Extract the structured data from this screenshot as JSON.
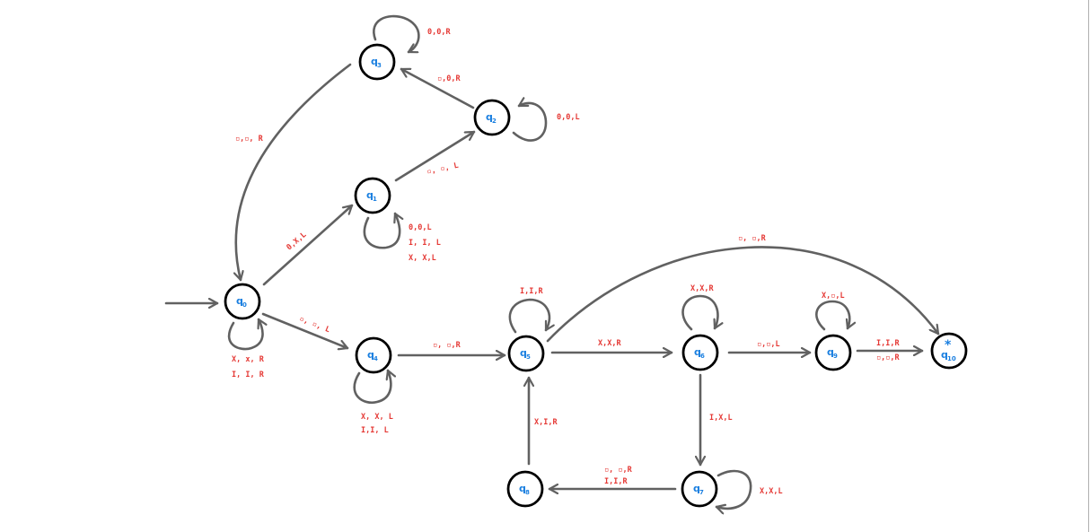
{
  "colors": {
    "edge": "#616161",
    "node_stroke": "#000000",
    "state_text": "#1a7fe0",
    "label_text": "#e53935"
  },
  "states": [
    {
      "id": "q0",
      "name": "q",
      "sub": "0"
    },
    {
      "id": "q1",
      "name": "q",
      "sub": "1"
    },
    {
      "id": "q2",
      "name": "q",
      "sub": "2"
    },
    {
      "id": "q3",
      "name": "q",
      "sub": "3"
    },
    {
      "id": "q4",
      "name": "q",
      "sub": "4"
    },
    {
      "id": "q5",
      "name": "q",
      "sub": "5"
    },
    {
      "id": "q6",
      "name": "q",
      "sub": "6"
    },
    {
      "id": "q7",
      "name": "q",
      "sub": "7"
    },
    {
      "id": "q8",
      "name": "q",
      "sub": "8"
    },
    {
      "id": "q9",
      "name": "q",
      "sub": "9"
    },
    {
      "id": "q10",
      "name": "q",
      "sub": "10",
      "accept_mark": "*"
    }
  ],
  "transitions": [
    {
      "from": "start",
      "to": "q0",
      "labels": []
    },
    {
      "from": "q0",
      "to": "q0",
      "labels": [
        "X, x, R",
        "I, I, R"
      ]
    },
    {
      "from": "q0",
      "to": "q1",
      "labels": [
        "0,X,L"
      ]
    },
    {
      "from": "q0",
      "to": "q4",
      "labels": [
        "▫, ▫, L"
      ]
    },
    {
      "from": "q1",
      "to": "q1",
      "labels": [
        "0,0,L",
        "I, I, L",
        "X, X,L"
      ]
    },
    {
      "from": "q1",
      "to": "q2",
      "labels": [
        "▫, ▫, L"
      ]
    },
    {
      "from": "q2",
      "to": "q2",
      "labels": [
        "0,0,L"
      ]
    },
    {
      "from": "q2",
      "to": "q3",
      "labels": [
        "▫,0,R"
      ]
    },
    {
      "from": "q3",
      "to": "q3",
      "labels": [
        "0,0,R"
      ]
    },
    {
      "from": "q3",
      "to": "q0",
      "labels": [
        "▫,▫, R"
      ]
    },
    {
      "from": "q4",
      "to": "q4",
      "labels": [
        "X, X, L",
        "I,I, L"
      ]
    },
    {
      "from": "q4",
      "to": "q5",
      "labels": [
        "▫, ▫,R"
      ]
    },
    {
      "from": "q5",
      "to": "q5",
      "labels": [
        "I,I,R"
      ]
    },
    {
      "from": "q5",
      "to": "q6",
      "labels": [
        "X,X,R"
      ]
    },
    {
      "from": "q5",
      "to": "q10",
      "labels": [
        "▫, ▫,R"
      ]
    },
    {
      "from": "q6",
      "to": "q6",
      "labels": [
        "X,X,R"
      ]
    },
    {
      "from": "q6",
      "to": "q9",
      "labels": [
        "▫,▫,L"
      ]
    },
    {
      "from": "q6",
      "to": "q7",
      "labels": [
        "I,X,L"
      ]
    },
    {
      "from": "q7",
      "to": "q7",
      "labels": [
        "X,X,L"
      ]
    },
    {
      "from": "q7",
      "to": "q8",
      "labels": [
        "▫, ▫,R",
        "I,I,R"
      ]
    },
    {
      "from": "q8",
      "to": "q5",
      "labels": [
        "X,I,R"
      ]
    },
    {
      "from": "q9",
      "to": "q9",
      "labels": [
        "X,▫,L"
      ]
    },
    {
      "from": "q9",
      "to": "q10",
      "labels": [
        "I,I,R",
        "▫,▫,R"
      ]
    }
  ]
}
